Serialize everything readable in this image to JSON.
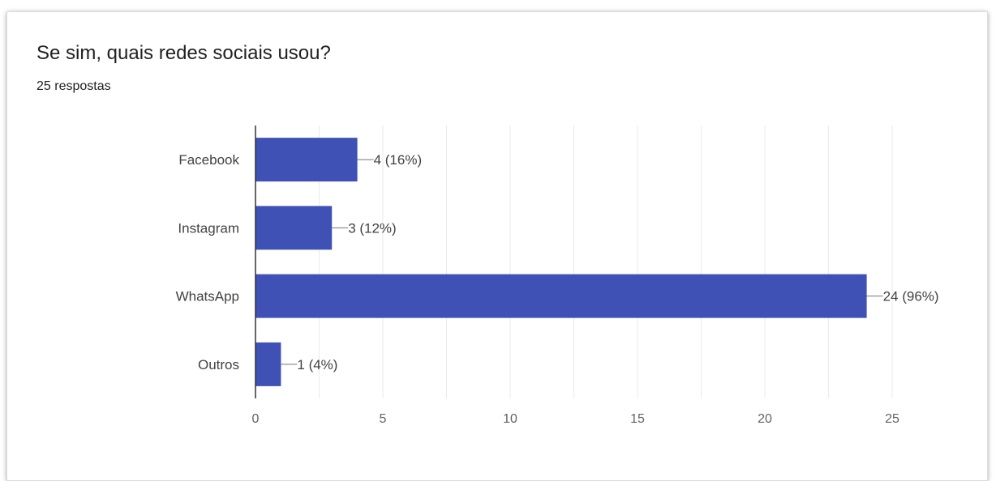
{
  "header": {
    "title": "Se sim, quais redes sociais usou?",
    "subtitle": "25 respostas"
  },
  "colors": {
    "bar": "#3f51b5",
    "axis": "#333333",
    "grid": "#ebebeb",
    "label": "#424242"
  },
  "chart_data": {
    "type": "bar",
    "orientation": "horizontal",
    "title": "Se sim, quais redes sociais usou?",
    "categories": [
      "Facebook",
      "Instagram",
      "WhatsApp",
      "Outros"
    ],
    "values": [
      4,
      3,
      24,
      1
    ],
    "data_labels": [
      "4 (16%)",
      "3 (12%)",
      "24 (96%)",
      "1 (4%)"
    ],
    "x_ticks": [
      0,
      5,
      10,
      15,
      20,
      25
    ],
    "xlim": [
      0,
      25
    ],
    "grid": true,
    "legend": "none"
  }
}
